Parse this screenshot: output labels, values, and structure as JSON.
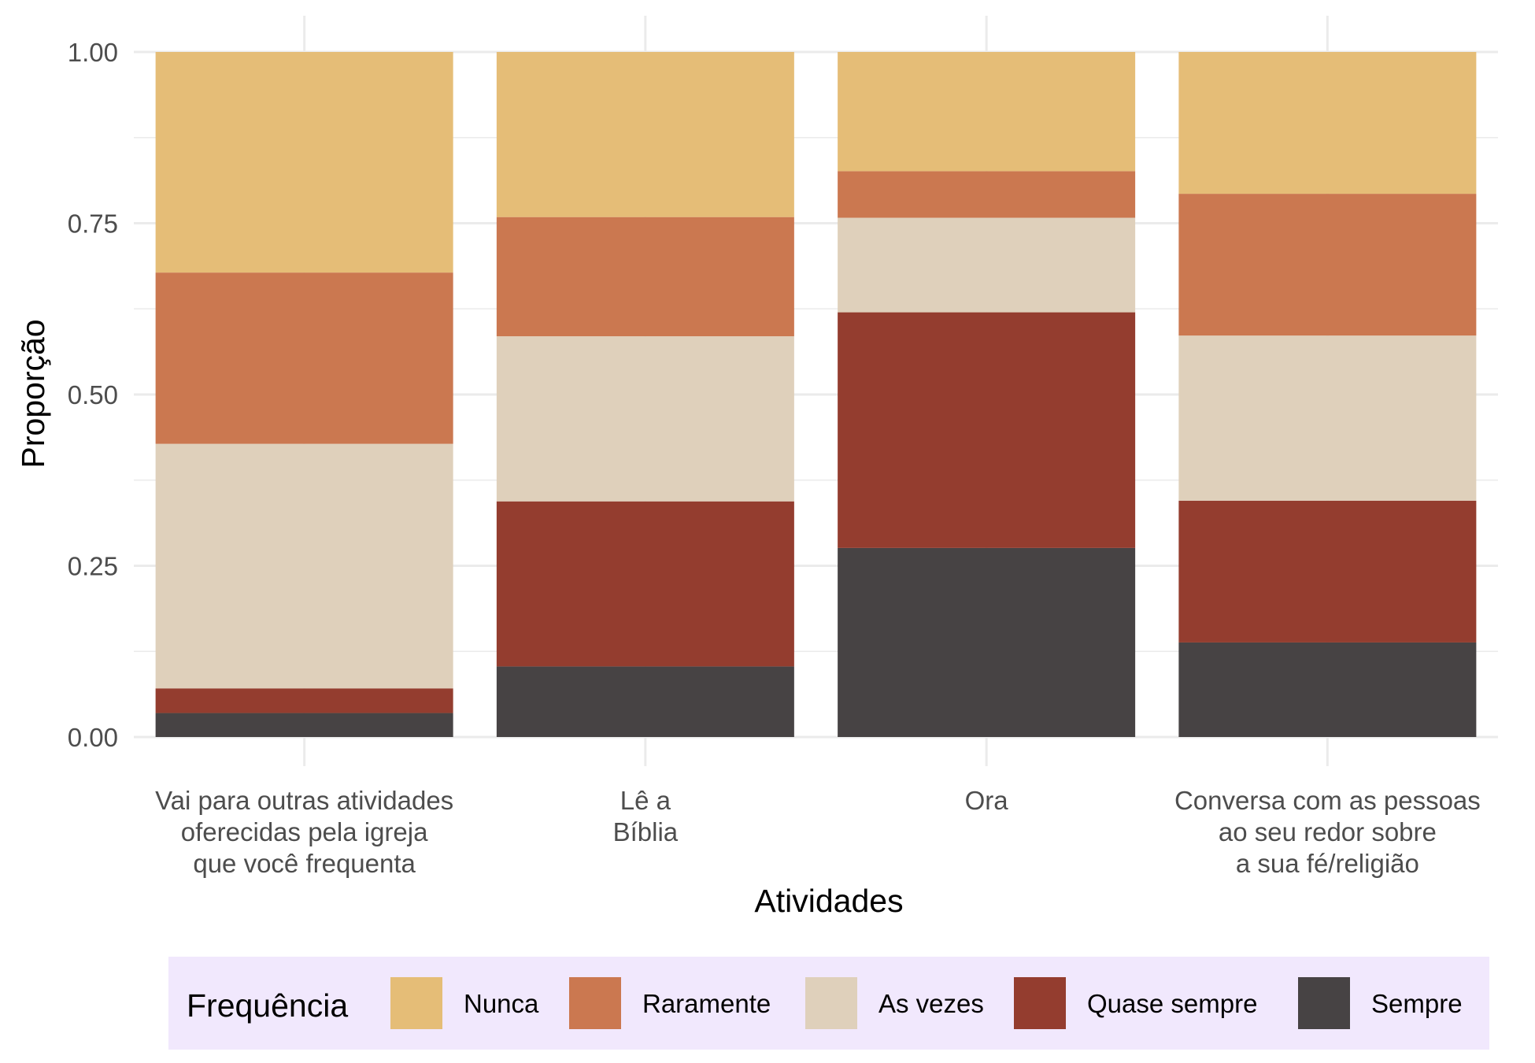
{
  "chart_data": {
    "type": "bar",
    "stacked": true,
    "xlabel": "Atividades",
    "ylabel": "Proporção",
    "ylim": [
      0,
      1
    ],
    "yticks": [
      "0.00",
      "0.25",
      "0.50",
      "0.75",
      "1.00"
    ],
    "grid": true,
    "legend_position": "bottom",
    "legend_title": "Frequência",
    "categories": [
      [
        "Vai para outras atividades",
        "oferecidas pela igreja",
        "que você frequenta"
      ],
      [
        "Lê a",
        "Bíblia"
      ],
      [
        "Ora"
      ],
      [
        "Conversa com as pessoas",
        "ao seu redor sobre",
        "a sua fé/religião"
      ]
    ],
    "series": [
      {
        "name": "Sempre",
        "color": "#474344",
        "values": [
          0.035,
          0.103,
          0.276,
          0.138
        ]
      },
      {
        "name": "Quase sempre",
        "color": "#943d2f",
        "values": [
          0.036,
          0.241,
          0.344,
          0.207
        ]
      },
      {
        "name": "As vezes",
        "color": "#dfd0bb",
        "values": [
          0.357,
          0.241,
          0.138,
          0.241
        ]
      },
      {
        "name": "Raramente",
        "color": "#cb7850",
        "values": [
          0.25,
          0.174,
          0.068,
          0.207
        ]
      },
      {
        "name": "Nunca",
        "color": "#e5bd77",
        "values": [
          0.322,
          0.241,
          0.174,
          0.207
        ]
      }
    ],
    "legend_order": [
      "Nunca",
      "Raramente",
      "As vezes",
      "Quase sempre",
      "Sempre"
    ]
  }
}
